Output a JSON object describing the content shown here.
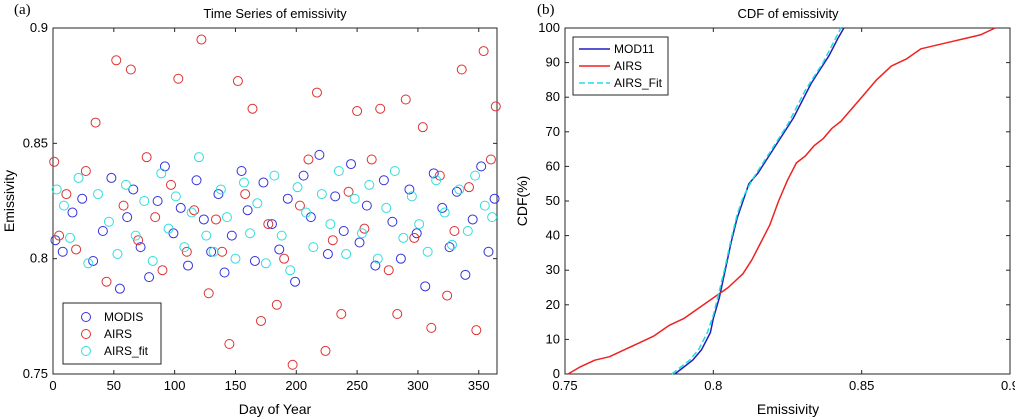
{
  "chart_data": [
    {
      "panel": "(a)",
      "type": "scatter",
      "title": "Time Series of emissivity",
      "xlabel": "Day of Year",
      "ylabel": "Emissivity",
      "xlim": [
        0,
        365
      ],
      "ylim": [
        0.75,
        0.9
      ],
      "xticks": [
        0,
        50,
        100,
        150,
        200,
        250,
        300,
        350
      ],
      "xtick_labels": [
        "0",
        "50",
        "100",
        "150",
        "200",
        "250",
        "300",
        "350"
      ],
      "yticks": [
        0.75,
        0.8,
        0.85,
        0.9
      ],
      "ytick_labels": [
        "0.75",
        "0.8",
        "0.85",
        "0.9"
      ],
      "legend_position": "bottom-left",
      "series": [
        {
          "name": "MODIS",
          "color": "#3333dd",
          "x": [
            2,
            8,
            16,
            24,
            33,
            41,
            48,
            55,
            61,
            66,
            72,
            79,
            86,
            92,
            99,
            105,
            111,
            118,
            124,
            130,
            136,
            141,
            147,
            155,
            160,
            166,
            173,
            180,
            186,
            193,
            199,
            206,
            212,
            219,
            226,
            232,
            239,
            245,
            252,
            258,
            265,
            272,
            279,
            286,
            293,
            299,
            306,
            313,
            320,
            326,
            332,
            339,
            345,
            352,
            358,
            363
          ],
          "y": [
            0.808,
            0.803,
            0.82,
            0.826,
            0.799,
            0.812,
            0.835,
            0.787,
            0.818,
            0.83,
            0.805,
            0.792,
            0.825,
            0.84,
            0.811,
            0.822,
            0.797,
            0.834,
            0.817,
            0.803,
            0.828,
            0.794,
            0.81,
            0.838,
            0.821,
            0.799,
            0.833,
            0.815,
            0.804,
            0.826,
            0.79,
            0.836,
            0.818,
            0.845,
            0.802,
            0.827,
            0.812,
            0.841,
            0.807,
            0.823,
            0.797,
            0.834,
            0.816,
            0.8,
            0.83,
            0.811,
            0.788,
            0.837,
            0.822,
            0.805,
            0.829,
            0.793,
            0.817,
            0.84,
            0.803,
            0.826
          ]
        },
        {
          "name": "AIRS",
          "color": "#dd3333",
          "x": [
            1,
            5,
            11,
            19,
            27,
            35,
            44,
            52,
            58,
            64,
            70,
            77,
            84,
            90,
            97,
            103,
            110,
            116,
            122,
            128,
            134,
            139,
            145,
            152,
            158,
            164,
            171,
            177,
            184,
            190,
            197,
            203,
            210,
            217,
            224,
            230,
            237,
            243,
            250,
            256,
            262,
            269,
            276,
            283,
            290,
            297,
            304,
            311,
            318,
            324,
            330,
            336,
            342,
            348,
            354,
            360,
            364
          ],
          "y": [
            0.842,
            0.81,
            0.828,
            0.804,
            0.838,
            0.859,
            0.79,
            0.886,
            0.823,
            0.882,
            0.808,
            0.844,
            0.818,
            0.795,
            0.832,
            0.878,
            0.803,
            0.821,
            0.895,
            0.785,
            0.817,
            0.803,
            0.763,
            0.877,
            0.828,
            0.865,
            0.773,
            0.815,
            0.78,
            0.8,
            0.754,
            0.823,
            0.843,
            0.872,
            0.76,
            0.808,
            0.776,
            0.829,
            0.864,
            0.813,
            0.843,
            0.865,
            0.795,
            0.776,
            0.869,
            0.809,
            0.857,
            0.77,
            0.836,
            0.784,
            0.812,
            0.882,
            0.831,
            0.769,
            0.89,
            0.843,
            0.866
          ]
        },
        {
          "name": "AIRS_fit",
          "color": "#33dddd",
          "x": [
            3,
            9,
            14,
            21,
            29,
            37,
            46,
            53,
            60,
            68,
            75,
            82,
            89,
            95,
            101,
            108,
            114,
            120,
            126,
            132,
            138,
            143,
            150,
            157,
            162,
            168,
            175,
            182,
            188,
            195,
            201,
            208,
            214,
            221,
            228,
            235,
            241,
            248,
            254,
            260,
            267,
            274,
            281,
            288,
            295,
            301,
            308,
            315,
            322,
            328,
            334,
            341,
            347,
            355,
            361
          ],
          "y": [
            0.83,
            0.823,
            0.809,
            0.835,
            0.798,
            0.828,
            0.816,
            0.802,
            0.832,
            0.81,
            0.825,
            0.799,
            0.837,
            0.813,
            0.827,
            0.805,
            0.82,
            0.844,
            0.81,
            0.803,
            0.83,
            0.818,
            0.8,
            0.833,
            0.811,
            0.824,
            0.798,
            0.836,
            0.81,
            0.795,
            0.831,
            0.82,
            0.805,
            0.828,
            0.815,
            0.838,
            0.802,
            0.826,
            0.811,
            0.832,
            0.8,
            0.822,
            0.838,
            0.809,
            0.827,
            0.815,
            0.803,
            0.834,
            0.82,
            0.806,
            0.83,
            0.812,
            0.836,
            0.823,
            0.818
          ]
        }
      ]
    },
    {
      "panel": "(b)",
      "type": "line",
      "title": "CDF of emissivity",
      "xlabel": "Emissivity",
      "ylabel": "CDF(%)",
      "xlim": [
        0.75,
        0.9
      ],
      "ylim": [
        0,
        100
      ],
      "xticks": [
        0.75,
        0.8,
        0.85,
        0.9
      ],
      "xtick_labels": [
        "0.75",
        "0.8",
        "0.85",
        "0.9"
      ],
      "yticks": [
        0,
        10,
        20,
        30,
        40,
        50,
        60,
        70,
        80,
        90,
        100
      ],
      "ytick_labels": [
        "0",
        "10",
        "20",
        "30",
        "40",
        "50",
        "60",
        "70",
        "80",
        "90",
        "100"
      ],
      "legend_position": "top-left",
      "series": [
        {
          "name": "MOD11",
          "color": "#1f1fbf",
          "x": [
            0.787,
            0.79,
            0.793,
            0.796,
            0.799,
            0.8,
            0.802,
            0.804,
            0.806,
            0.808,
            0.81,
            0.812,
            0.815,
            0.818,
            0.821,
            0.824,
            0.827,
            0.83,
            0.833,
            0.836,
            0.839,
            0.842,
            0.844
          ],
          "y": [
            0,
            2,
            4,
            7,
            12,
            16,
            22,
            30,
            38,
            45,
            50,
            55,
            58,
            62,
            66,
            70,
            74,
            79,
            84,
            88,
            92,
            97,
            100
          ]
        },
        {
          "name": "AIRS",
          "color": "#ee2222",
          "x": [
            0.751,
            0.755,
            0.76,
            0.765,
            0.77,
            0.775,
            0.78,
            0.785,
            0.79,
            0.795,
            0.8,
            0.805,
            0.81,
            0.813,
            0.816,
            0.819,
            0.822,
            0.825,
            0.828,
            0.831,
            0.834,
            0.837,
            0.84,
            0.843,
            0.846,
            0.85,
            0.855,
            0.86,
            0.865,
            0.87,
            0.875,
            0.88,
            0.885,
            0.89,
            0.895
          ],
          "y": [
            0,
            2,
            4,
            5,
            7,
            9,
            11,
            14,
            16,
            19,
            22,
            25,
            29,
            33,
            38,
            43,
            50,
            56,
            61,
            63,
            66,
            68,
            71,
            73,
            76,
            80,
            85,
            89,
            91,
            94,
            95,
            96,
            97,
            98,
            100
          ]
        },
        {
          "name": "AIRS_Fit",
          "color": "#22dddd",
          "x": [
            0.786,
            0.789,
            0.792,
            0.795,
            0.798,
            0.8,
            0.802,
            0.804,
            0.806,
            0.808,
            0.81,
            0.813,
            0.816,
            0.819,
            0.822,
            0.825,
            0.828,
            0.831,
            0.834,
            0.837,
            0.84,
            0.843
          ],
          "y": [
            0,
            2,
            4,
            7,
            12,
            17,
            24,
            31,
            39,
            46,
            51,
            56,
            60,
            64,
            68,
            72,
            77,
            82,
            86,
            90,
            95,
            100
          ]
        }
      ]
    }
  ]
}
